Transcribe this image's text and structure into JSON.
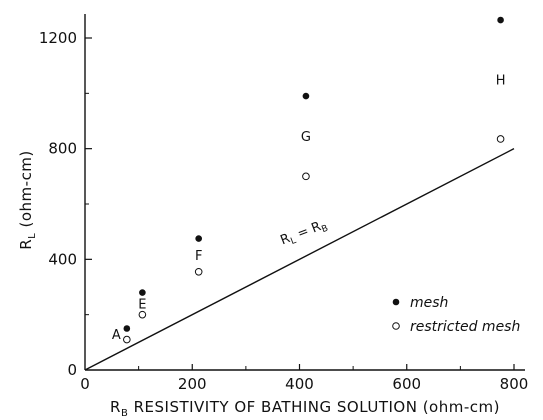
{
  "chart_data": {
    "type": "scatter",
    "xlabel": {
      "main": "R",
      "sub": "B",
      "rest": " RESISTIVITY OF BATHING SOLUTION (ohm-cm)"
    },
    "ylabel": {
      "main": "R",
      "sub": "L",
      "rest": " (ohm-cm)"
    },
    "xlim": [
      0,
      800
    ],
    "ylim": [
      0,
      1300
    ],
    "x_ticks": [
      "0",
      "200",
      "400",
      "600",
      "800"
    ],
    "y_ticks": [
      "0",
      "400",
      "800",
      "1200"
    ],
    "grid": false,
    "series": [
      {
        "name": "mesh",
        "marker": "filled",
        "points": [
          [
            78,
            150
          ],
          [
            107,
            280
          ],
          [
            212,
            475
          ],
          [
            412,
            990
          ],
          [
            775,
            1265
          ]
        ]
      },
      {
        "name": "restricted mesh",
        "marker": "open",
        "points": [
          [
            78,
            110
          ],
          [
            107,
            200
          ],
          [
            212,
            355
          ],
          [
            412,
            700
          ],
          [
            775,
            835
          ]
        ]
      }
    ],
    "point_labels": [
      {
        "text": "A",
        "x": 78,
        "y": 130
      },
      {
        "text": "E",
        "x": 107,
        "y": 240
      },
      {
        "text": "F",
        "x": 212,
        "y": 415
      },
      {
        "text": "G",
        "x": 412,
        "y": 845
      },
      {
        "text": "H",
        "x": 775,
        "y": 1050
      }
    ],
    "reference_line": {
      "label_main": "R",
      "label_sub1": "L",
      "label_eq": " = R",
      "label_sub2": "B",
      "from": [
        0,
        0
      ],
      "to": [
        800,
        800
      ]
    },
    "legend": {
      "position": "lower-right",
      "entries": [
        "mesh",
        "restricted mesh"
      ]
    }
  }
}
